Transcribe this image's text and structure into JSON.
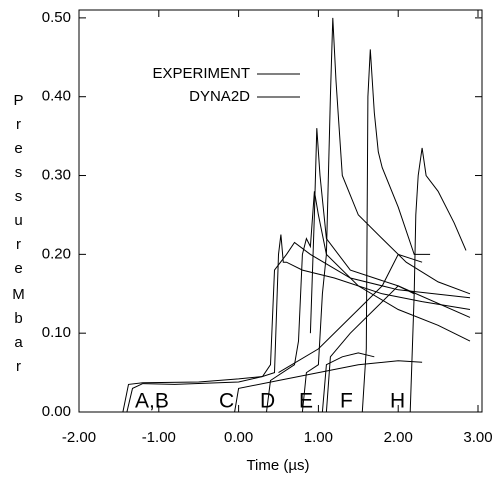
{
  "chart_data": {
    "type": "line",
    "x_label": "Time (µs)",
    "y_label": [
      "Pressure",
      "Mbar"
    ],
    "annotations": [
      "A,B",
      "C",
      "D",
      "E",
      "F",
      "H"
    ],
    "xlim": [
      -2,
      3.05
    ],
    "ylim": [
      0,
      0.51
    ],
    "xticks": [
      {
        "value": -2,
        "label": "-2.00"
      },
      {
        "value": -1,
        "label": "-1.00"
      },
      {
        "value": 0,
        "label": "0.00"
      },
      {
        "value": 1,
        "label": "1.00"
      },
      {
        "value": 2,
        "label": "2.00"
      },
      {
        "value": 3,
        "label": "3.00"
      }
    ],
    "yticks": [
      {
        "value": 0,
        "label": "0.00"
      },
      {
        "value": 0.1,
        "label": "0.10"
      },
      {
        "value": 0.2,
        "label": "0.20"
      },
      {
        "value": 0.3,
        "label": "0.30"
      },
      {
        "value": 0.4,
        "label": "0.40"
      },
      {
        "value": 0.5,
        "label": "0.50"
      }
    ],
    "series": [
      {
        "name": "EXPERIMENT",
        "color": "#000000",
        "lines": [
          {
            "x": [
              -1.72,
              -1.45,
              -1.38,
              -1.2,
              -0.5,
              0,
              0.3,
              0.45,
              0.5,
              0.53,
              0.56,
              0.6,
              0.8,
              1.2,
              1.8,
              2.3,
              2.9
            ],
            "values": [
              0,
              0,
              0.035,
              0.037,
              0.038,
              0.042,
              0.045,
              0.05,
              0.2,
              0.225,
              0.19,
              0.19,
              0.18,
              0.17,
              0.15,
              0.14,
              0.13
            ]
          },
          {
            "x": [
              0.8,
              0.85,
              1.0,
              1.05,
              1.1,
              1.15,
              1.18,
              1.22,
              1.3,
              1.5,
              1.8,
              2.1,
              2.5,
              2.9
            ],
            "values": [
              0,
              0.05,
              0.06,
              0.15,
              0.2,
              0.4,
              0.5,
              0.42,
              0.3,
              0.25,
              0.22,
              0.19,
              0.165,
              0.15
            ]
          },
          {
            "x": [
              1.05,
              1.1,
              1.3,
              1.5,
              1.7
            ],
            "values": [
              0,
              0.06,
              0.07,
              0.075,
              0.07
            ]
          },
          {
            "x": [
              1.55,
              1.6,
              1.62,
              1.65,
              1.7,
              1.75,
              1.8,
              2.0,
              2.2,
              2.4
            ],
            "values": [
              0,
              0.08,
              0.4,
              0.46,
              0.38,
              0.33,
              0.31,
              0.26,
              0.2,
              0.2
            ]
          },
          {
            "x": [
              2.15,
              2.2,
              2.22,
              2.25,
              2.3,
              2.35,
              2.5,
              2.7,
              2.85
            ],
            "values": [
              0,
              0.15,
              0.25,
              0.3,
              0.335,
              0.3,
              0.28,
              0.24,
              0.205
            ]
          }
        ]
      },
      {
        "name": "DYNA2D",
        "color": "#000000",
        "lines": [
          {
            "x": [
              -1.4,
              -1.33,
              -1.2,
              -0.8,
              0,
              0.3,
              0.4,
              0.45,
              0.6,
              0.7,
              0.9,
              1.4,
              2.0,
              2.9
            ],
            "values": [
              0,
              0.03,
              0.036,
              0.035,
              0.038,
              0.045,
              0.06,
              0.18,
              0.2,
              0.215,
              0.2,
              0.17,
              0.155,
              0.145
            ]
          },
          {
            "x": [
              -0.05,
              0,
              0.5,
              1.0,
              1.5,
              2.0,
              2.3
            ],
            "values": [
              0,
              0.03,
              0.04,
              0.05,
              0.06,
              0.065,
              0.063
            ]
          },
          {
            "x": [
              0.35,
              0.4,
              0.7,
              0.75,
              0.8,
              0.85,
              0.9,
              0.95,
              1.0,
              1.1,
              1.5,
              2.0,
              2.5,
              2.9
            ],
            "values": [
              0,
              0.04,
              0.06,
              0.09,
              0.2,
              0.22,
              0.21,
              0.28,
              0.25,
              0.2,
              0.16,
              0.13,
              0.11,
              0.09
            ]
          },
          {
            "x": [
              1.1,
              1.15,
              1.4,
              1.7,
              1.9,
              2.0,
              2.2
            ],
            "values": [
              0,
              0.07,
              0.1,
              0.13,
              0.15,
              0.16,
              0.15
            ]
          },
          {
            "x": [
              0.5,
              1.0,
              1.5,
              1.8,
              2.0,
              2.3
            ],
            "values": [
              0.05,
              0.08,
              0.13,
              0.16,
              0.2,
              0.19
            ]
          },
          {
            "x": [
              0.9,
              0.95,
              0.98,
              1.02,
              1.1,
              1.4,
              2.0,
              2.9
            ],
            "values": [
              0.1,
              0.25,
              0.36,
              0.3,
              0.22,
              0.18,
              0.16,
              0.12
            ]
          }
        ]
      }
    ]
  }
}
